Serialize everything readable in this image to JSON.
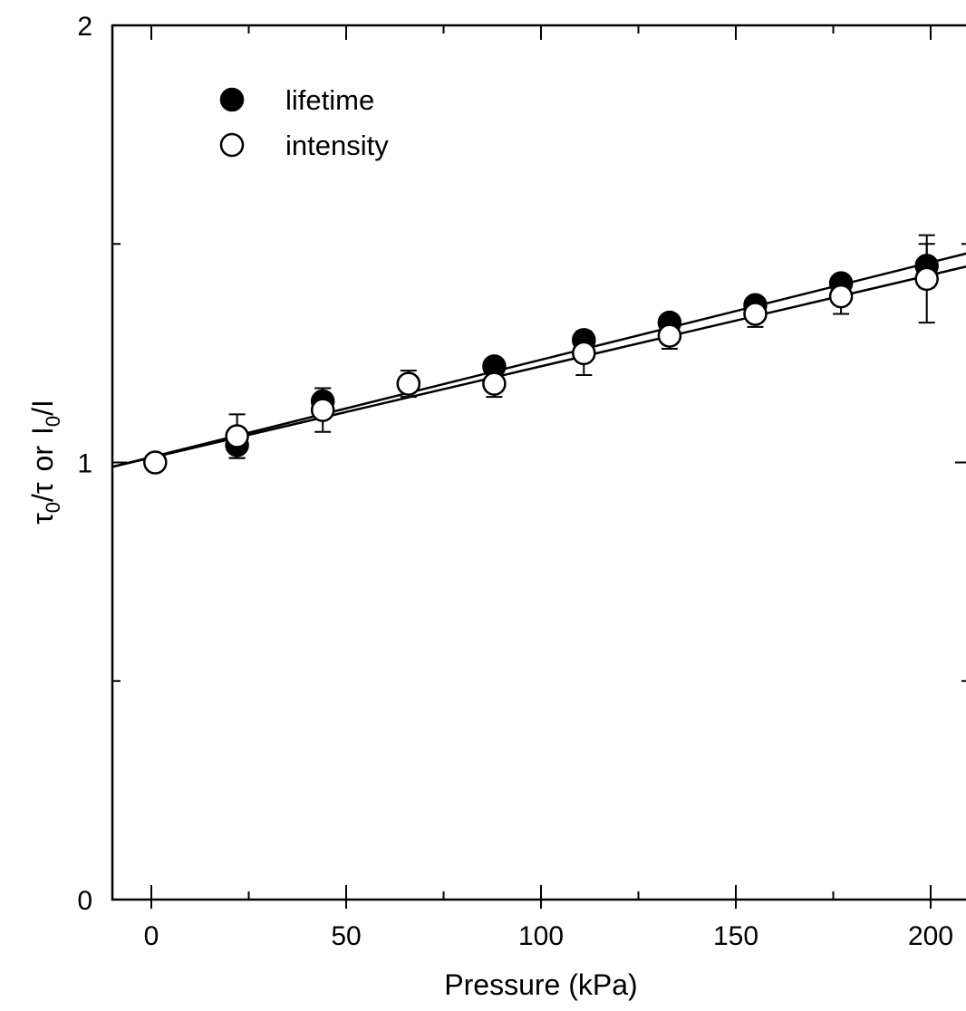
{
  "chart_data": {
    "type": "scatter",
    "title": "",
    "xlabel": "Pressure (kPa)",
    "ylabel_parts": {
      "tau": "τ",
      "tau_sub": "0",
      "slash_tau": "/τ",
      "or": "or",
      "I": "I",
      "I_sub": "0",
      "slash_I": "/I"
    },
    "xlim": [
      -10,
      210
    ],
    "ylim": [
      0,
      2
    ],
    "x_ticks": [
      0,
      50,
      100,
      150,
      200
    ],
    "x_tick_labels": [
      "0",
      "50",
      "100",
      "150",
      "200"
    ],
    "x_minor_ticks": [
      25,
      75,
      125,
      175
    ],
    "y_ticks": [
      0,
      1,
      2
    ],
    "y_tick_labels": [
      "0",
      "1",
      "2"
    ],
    "y_minor_ticks": [
      0.5,
      1.5
    ],
    "grid": false,
    "legend_position": "top-left",
    "series": [
      {
        "name": "lifetime",
        "marker": "filled-circle",
        "x": [
          22,
          44,
          66,
          88,
          111,
          133,
          155,
          177,
          199
        ],
        "y": [
          1.04,
          1.14,
          1.18,
          1.22,
          1.28,
          1.32,
          1.36,
          1.41,
          1.45
        ],
        "err": [
          0.03,
          0.03,
          0.02,
          0.02,
          0.02,
          0.02,
          0.02,
          0.02,
          0.05
        ],
        "fit": {
          "x0": -10,
          "y0": 0.99,
          "x1": 210,
          "y1": 1.48
        }
      },
      {
        "name": "intensity",
        "marker": "open-circle",
        "x": [
          1,
          22,
          44,
          66,
          88,
          111,
          133,
          155,
          177,
          199
        ],
        "y": [
          1.0,
          1.06,
          1.12,
          1.18,
          1.18,
          1.25,
          1.29,
          1.34,
          1.38,
          1.42
        ],
        "err": [
          0,
          0.05,
          0.05,
          0.03,
          0.03,
          0.05,
          0.03,
          0.03,
          0.04,
          0.1
        ],
        "fit": {
          "x0": -10,
          "y0": 0.99,
          "x1": 210,
          "y1": 1.45
        }
      }
    ]
  }
}
